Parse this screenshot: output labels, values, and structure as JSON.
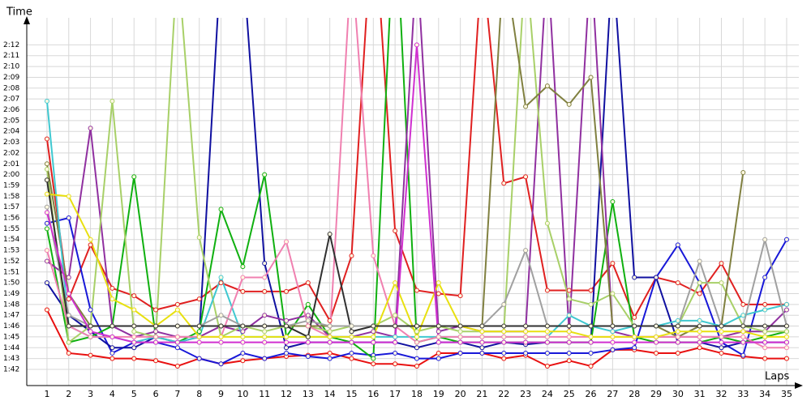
{
  "chart_data": {
    "type": "line",
    "x_label": "Laps",
    "y_label": "Time",
    "x": [
      1,
      2,
      3,
      4,
      5,
      6,
      7,
      8,
      9,
      10,
      11,
      12,
      13,
      14,
      15,
      16,
      17,
      18,
      19,
      20,
      21,
      22,
      23,
      24,
      25,
      26,
      27,
      28,
      29,
      30,
      31,
      32,
      33,
      34,
      35
    ],
    "xlim": [
      0.07,
      35.56
    ],
    "xticks": [
      1,
      2,
      3,
      4,
      5,
      6,
      7,
      8,
      9,
      10,
      11,
      12,
      13,
      14,
      15,
      16,
      17,
      18,
      19,
      20,
      21,
      22,
      23,
      24,
      25,
      26,
      27,
      28,
      29,
      30,
      31,
      32,
      33,
      34,
      35
    ],
    "ylim": [
      100.5,
      134.5
    ],
    "yticks": [
      {
        "value": 102,
        "label": "1:42"
      },
      {
        "value": 103,
        "label": "1:43"
      },
      {
        "value": 104,
        "label": "1:44"
      },
      {
        "value": 105,
        "label": "1:45"
      },
      {
        "value": 106,
        "label": "1:46"
      },
      {
        "value": 107,
        "label": "1:47"
      },
      {
        "value": 108,
        "label": "1:48"
      },
      {
        "value": 109,
        "label": "1:49"
      },
      {
        "value": 110,
        "label": "1:50"
      },
      {
        "value": 111,
        "label": "1:51"
      },
      {
        "value": 112,
        "label": "1:52"
      },
      {
        "value": 113,
        "label": "1:53"
      },
      {
        "value": 114,
        "label": "1:54"
      },
      {
        "value": 115,
        "label": "1:55"
      },
      {
        "value": 116,
        "label": "1:56"
      },
      {
        "value": 117,
        "label": "1:57"
      },
      {
        "value": 118,
        "label": "1:58"
      },
      {
        "value": 119,
        "label": "1:59"
      },
      {
        "value": 120,
        "label": "2:00"
      },
      {
        "value": 121,
        "label": "2:01"
      },
      {
        "value": 122,
        "label": "2:02"
      },
      {
        "value": 123,
        "label": "2:03"
      },
      {
        "value": 124,
        "label": "2:04"
      },
      {
        "value": 125,
        "label": "2:05"
      },
      {
        "value": 126,
        "label": "2:06"
      },
      {
        "value": 127,
        "label": "2:07"
      },
      {
        "value": 128,
        "label": "2:08"
      },
      {
        "value": 129,
        "label": "2:09"
      },
      {
        "value": 130,
        "label": "2:10"
      },
      {
        "value": 131,
        "label": "2:11"
      },
      {
        "value": 132,
        "label": "2:12"
      }
    ],
    "grid": true,
    "series": [
      {
        "color": "#e81010",
        "values": [
          107.5,
          103.5,
          103.3,
          103,
          103,
          102.8,
          102.3,
          103,
          102.5,
          102.8,
          103,
          103.2,
          103.3,
          103.5,
          103,
          102.5,
          102.5,
          102.3,
          103.5,
          103.5,
          103.5,
          103,
          103.3,
          102.3,
          102.8,
          102.3,
          103.8,
          103.8,
          103.5,
          103.5,
          104,
          103.5,
          103.2,
          103,
          103
        ]
      },
      {
        "color": "#e02020",
        "values": [
          123.3,
          108.5,
          113.5,
          109.5,
          108.8,
          107.5,
          108,
          108.5,
          110,
          109.2,
          109.2,
          109.2,
          110,
          106.5,
          112.5,
          145,
          114.8,
          109.3,
          109,
          108.8,
          140,
          119.2,
          119.8,
          109.3,
          109.3,
          109.3,
          111.8,
          106.8,
          110.5,
          110,
          109,
          111.8,
          108,
          108,
          108
        ]
      },
      {
        "color": "#1818d8",
        "values": [
          115.5,
          116,
          107.5,
          103.5,
          104.5,
          104.5,
          104,
          103,
          102.5,
          103.5,
          103,
          103.5,
          103.2,
          103,
          103.5,
          103.3,
          103.5,
          103,
          103,
          103.5,
          103.5,
          103.5,
          103.5,
          103.5,
          103.5,
          103.5,
          103.8,
          104,
          110.5,
          113.5,
          110,
          104.5,
          103.3,
          110.5,
          114
        ]
      },
      {
        "color": "#1010a0",
        "values": [
          110,
          107,
          105.5,
          104,
          104,
          105,
          104.5,
          105,
          140,
          140,
          111.8,
          104,
          104.5,
          104.5,
          104.5,
          104.5,
          104.5,
          104,
          104.5,
          104.5,
          104,
          104.5,
          104.3,
          104.5,
          104.5,
          104.5,
          140,
          110.5,
          110.5,
          104.5,
          104.5,
          104,
          104.5,
          104.5,
          104.5
        ]
      },
      {
        "color": "#10b010",
        "values": [
          115,
          104.5,
          105,
          106,
          119.8,
          105,
          104.5,
          105.5,
          116.8,
          111.5,
          120,
          105,
          108,
          105,
          104.5,
          103,
          145,
          104.5,
          105,
          104.5,
          104.5,
          104.5,
          104.5,
          104.5,
          104.5,
          104.5,
          117.5,
          105,
          104.5,
          104.5,
          104.5,
          105,
          104.5,
          105,
          105.5
        ]
      },
      {
        "color": "#9030a0",
        "values": [
          112,
          110.5,
          124.3,
          106,
          105,
          105.5,
          105,
          105,
          106,
          105.5,
          107,
          106.5,
          107,
          105,
          105,
          105.5,
          105,
          140,
          105.5,
          106,
          105.5,
          105.5,
          105.5,
          140,
          105.5,
          140,
          105.5,
          105,
          105,
          105,
          105,
          105,
          105.5,
          105.5,
          107.5
        ]
      },
      {
        "color": "#a8d068",
        "values": [
          120.5,
          104.5,
          106,
          126.8,
          105.5,
          105,
          140,
          114.2,
          105,
          106,
          105.5,
          106,
          106,
          105.5,
          106,
          106,
          107,
          105.5,
          106,
          105.5,
          105.5,
          105.5,
          140,
          115.5,
          108.5,
          108,
          109,
          106,
          106,
          106,
          110,
          110,
          106,
          105.5,
          105.5
        ]
      },
      {
        "color": "#808040",
        "values": [
          121,
          109,
          106,
          106,
          106,
          106,
          106,
          106,
          106,
          106,
          106,
          106,
          106,
          106,
          106,
          106,
          106,
          106,
          106,
          106,
          106,
          140,
          126.3,
          128.2,
          126.5,
          129,
          106,
          106,
          106,
          105,
          106,
          106,
          120.2,
          null,
          null
        ]
      },
      {
        "color": "#40c8d0",
        "values": [
          126.8,
          106,
          105,
          105,
          104.5,
          105,
          104.5,
          105,
          110.5,
          105,
          105,
          105,
          105,
          105,
          105,
          105,
          105,
          105,
          105,
          105,
          105,
          105,
          105,
          105,
          107,
          106,
          105.5,
          106,
          106,
          106.5,
          106.5,
          106,
          107,
          107.5,
          108
        ]
      },
      {
        "color": "#f080b0",
        "values": [
          113,
          106,
          105,
          105,
          105,
          105,
          105,
          105,
          105,
          110.5,
          110.5,
          113.8,
          106,
          105,
          140,
          112.5,
          106,
          104.5,
          105,
          105,
          105,
          105,
          105,
          105,
          105,
          105,
          105,
          105,
          105,
          105,
          105,
          105,
          105,
          104,
          104
        ]
      },
      {
        "color": "#e8e010",
        "values": [
          118.2,
          118,
          114,
          108.5,
          107.5,
          106,
          107.5,
          105,
          105,
          105,
          105,
          105,
          105,
          105,
          105,
          105,
          110,
          105,
          110,
          106,
          105.5,
          105.5,
          105.5,
          105.5,
          105.5,
          105,
          105,
          105,
          105,
          105.5,
          105.5,
          105.5,
          105.5,
          105,
          105
        ]
      },
      {
        "color": "#a0a0a0",
        "values": [
          117,
          107,
          106,
          106,
          106,
          106,
          106,
          106,
          107,
          106,
          106,
          106,
          106.5,
          106,
          106,
          106,
          106,
          106,
          106,
          106,
          106,
          108,
          113,
          106,
          106,
          106,
          106,
          106,
          106,
          106,
          112,
          106,
          106,
          114,
          106
        ]
      },
      {
        "color": "#303030",
        "values": [
          119.5,
          106,
          106,
          106,
          106,
          106,
          106,
          106,
          106,
          106,
          106,
          106,
          105,
          114.5,
          105.5,
          106,
          106,
          106,
          106,
          106,
          106,
          106,
          106,
          106,
          106,
          106,
          106,
          106,
          106,
          106,
          106,
          106,
          106,
          106,
          106
        ]
      },
      {
        "color": "#d030d0",
        "values": [
          116.5,
          109,
          105.5,
          105,
          104.5,
          104.5,
          104.5,
          104.5,
          104.5,
          104.5,
          104.5,
          104.5,
          104.5,
          104.5,
          104.5,
          104.5,
          104.5,
          132,
          104.5,
          104.5,
          104.5,
          104.5,
          104.5,
          104.5,
          104.5,
          104.5,
          104.5,
          104.5,
          104.5,
          104.5,
          104.5,
          104.5,
          104.5,
          104.5,
          104.5
        ]
      }
    ]
  }
}
